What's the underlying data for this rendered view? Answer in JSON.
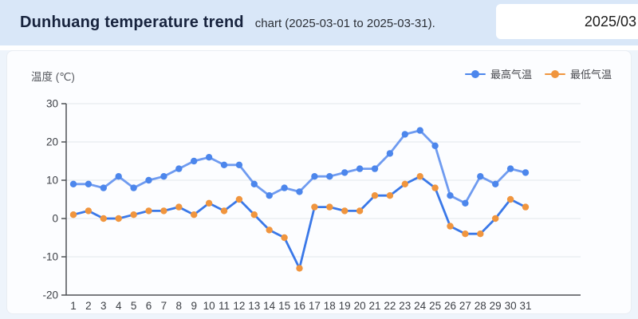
{
  "header": {
    "title": "Dunhuang temperature trend",
    "subtitle": "chart (2025-03-01 to 2025-03-31).",
    "date_value": "2025/03"
  },
  "chart": {
    "y_axis_title": "温度 (℃)"
  },
  "chart_data": {
    "type": "line",
    "title": "Dunhuang temperature trend",
    "x": [
      1,
      2,
      3,
      4,
      5,
      6,
      7,
      8,
      9,
      10,
      11,
      12,
      13,
      14,
      15,
      16,
      17,
      18,
      19,
      20,
      21,
      22,
      23,
      24,
      25,
      26,
      27,
      28,
      29,
      30,
      31
    ],
    "series": [
      {
        "name": "最高气温",
        "values": [
          9,
          9,
          8,
          11,
          8,
          10,
          11,
          13,
          15,
          16,
          14,
          14,
          9,
          6,
          8,
          7,
          11,
          11,
          12,
          13,
          13,
          17,
          22,
          23,
          19,
          6,
          4,
          11,
          9,
          13,
          12
        ],
        "line_color": "#6f9bf0",
        "point_color": "#4c86ec"
      },
      {
        "name": "最低气温",
        "values": [
          1,
          2,
          0,
          0,
          1,
          2,
          2,
          3,
          1,
          4,
          2,
          5,
          1,
          -3,
          -5,
          -13,
          3,
          3,
          2,
          2,
          6,
          6,
          9,
          11,
          8,
          -2,
          -4,
          -4,
          0,
          5,
          3
        ],
        "line_color": "#3a78e8",
        "point_color": "#f0953e"
      }
    ],
    "xlabel": "",
    "ylabel": "温度 (℃)",
    "ylim": [
      -20,
      30
    ],
    "y_ticks": [
      30,
      20,
      10,
      0,
      -10,
      -20
    ],
    "grid": true,
    "legend_position": "top-right",
    "axis_color": "#4f5256",
    "grid_color": "#e2e6eb",
    "tick_label_color": "#3d4046"
  }
}
